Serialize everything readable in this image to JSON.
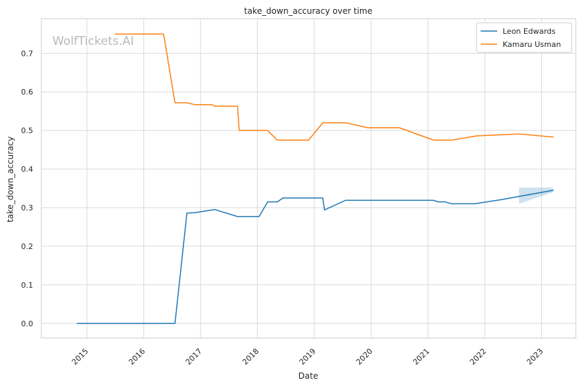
{
  "chart_data": {
    "type": "line",
    "title": "take_down_accuracy over time",
    "xlabel": "Date",
    "ylabel": "take_down_accuracy",
    "watermark": "WolfTickets.AI",
    "xlim": [
      2014.2,
      2023.6
    ],
    "ylim": [
      -0.038,
      0.79
    ],
    "x_ticks": [
      2015,
      2016,
      2017,
      2018,
      2019,
      2020,
      2021,
      2022,
      2023
    ],
    "x_tick_labels": [
      "2015",
      "2016",
      "2017",
      "2018",
      "2019",
      "2020",
      "2021",
      "2022",
      "2023"
    ],
    "y_ticks": [
      0.0,
      0.1,
      0.2,
      0.3,
      0.4,
      0.5,
      0.6,
      0.7
    ],
    "y_tick_labels": [
      "0.0",
      "0.1",
      "0.2",
      "0.3",
      "0.4",
      "0.5",
      "0.6",
      "0.7"
    ],
    "grid": true,
    "legend_position": "top-right",
    "series": [
      {
        "name": "Leon Edwards",
        "color": "#1f77b4",
        "x": [
          2014.83,
          2016.55,
          2016.76,
          2016.9,
          2017.25,
          2017.65,
          2018.03,
          2018.18,
          2018.35,
          2018.45,
          2018.8,
          2019.15,
          2019.18,
          2019.55,
          2019.9,
          2020.5,
          2021.1,
          2021.18,
          2021.3,
          2021.42,
          2021.82,
          2022.3,
          2022.6,
          2023.2
        ],
        "y": [
          0.0,
          0.0,
          0.286,
          0.287,
          0.295,
          0.277,
          0.277,
          0.315,
          0.315,
          0.325,
          0.325,
          0.325,
          0.294,
          0.319,
          0.319,
          0.319,
          0.319,
          0.315,
          0.315,
          0.31,
          0.31,
          0.321,
          0.329,
          0.345
        ]
      },
      {
        "name": "Kamaru Usman",
        "color": "#ff7f0e",
        "x": [
          2015.5,
          2016.35,
          2016.55,
          2016.75,
          2016.9,
          2017.2,
          2017.25,
          2017.65,
          2017.68,
          2018.18,
          2018.35,
          2018.9,
          2019.15,
          2019.55,
          2019.95,
          2020.5,
          2021.1,
          2021.42,
          2021.85,
          2022.6,
          2023.2
        ],
        "y": [
          0.75,
          0.75,
          0.572,
          0.572,
          0.567,
          0.567,
          0.563,
          0.563,
          0.5,
          0.5,
          0.475,
          0.475,
          0.52,
          0.52,
          0.507,
          0.507,
          0.475,
          0.475,
          0.486,
          0.491,
          0.483
        ]
      }
    ],
    "bands": [
      {
        "series": "Leon Edwards",
        "x": [
          2022.6,
          2023.2
        ],
        "lower": [
          0.31,
          0.34
        ],
        "upper": [
          0.352,
          0.352
        ]
      }
    ]
  }
}
